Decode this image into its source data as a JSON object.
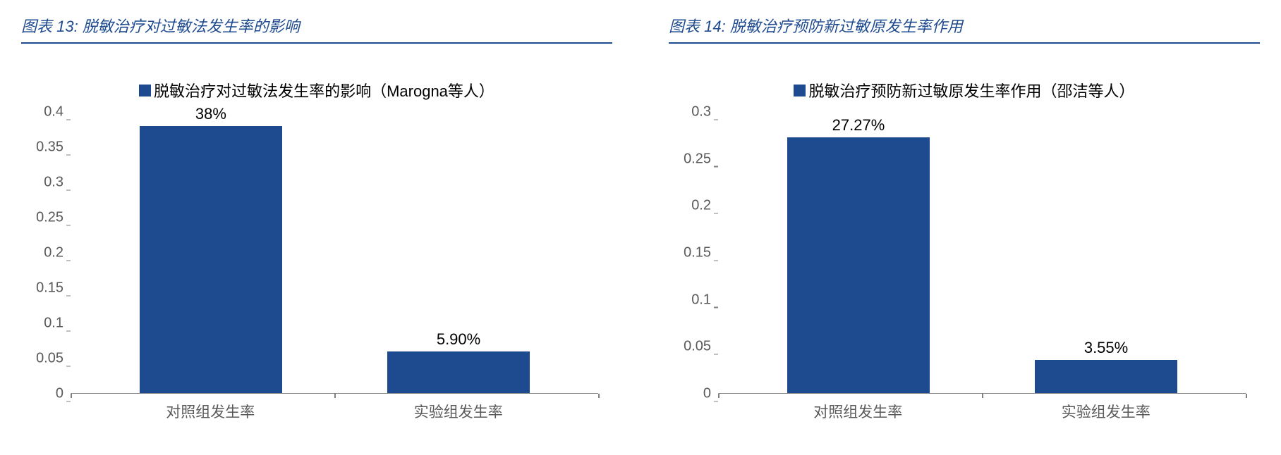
{
  "charts": [
    {
      "panel_title": "图表 13:  脱敏治疗对过敏法发生率的影响",
      "legend_label": "脱敏治疗对过敏法发生率的影响（Marogna等人）",
      "type": "bar",
      "categories": [
        "对照组发生率",
        "实验组发生率"
      ],
      "values": [
        0.38,
        0.059
      ],
      "value_labels": [
        "38%",
        "5.90%"
      ],
      "ylim": [
        0,
        0.4
      ],
      "ytick_step": 0.05,
      "yticks": [
        "0",
        "0.05",
        "0.1",
        "0.15",
        "0.2",
        "0.25",
        "0.3",
        "0.35",
        "0.4"
      ],
      "bar_color": "#1e4a8f",
      "legend_box_color": "#1e4a8f",
      "title_color": "#1e4a8f",
      "axis_text_color": "#595959",
      "label_fontsize": 22,
      "tick_fontsize": 20
    },
    {
      "panel_title": "图表 14:  脱敏治疗预防新过敏原发生率作用",
      "legend_label": "脱敏治疗预防新过敏原发生率作用（邵洁等人）",
      "type": "bar",
      "categories": [
        "对照组发生率",
        "实验组发生率"
      ],
      "values": [
        0.2727,
        0.0355
      ],
      "value_labels": [
        "27.27%",
        "3.55%"
      ],
      "ylim": [
        0,
        0.3
      ],
      "ytick_step": 0.05,
      "yticks": [
        "0",
        "0.05",
        "0.1",
        "0.15",
        "0.2",
        "0.25",
        "0.3"
      ],
      "bar_color": "#1e4a8f",
      "legend_box_color": "#1e4a8f",
      "title_color": "#1e4a8f",
      "axis_text_color": "#595959",
      "label_fontsize": 22,
      "tick_fontsize": 20
    }
  ]
}
